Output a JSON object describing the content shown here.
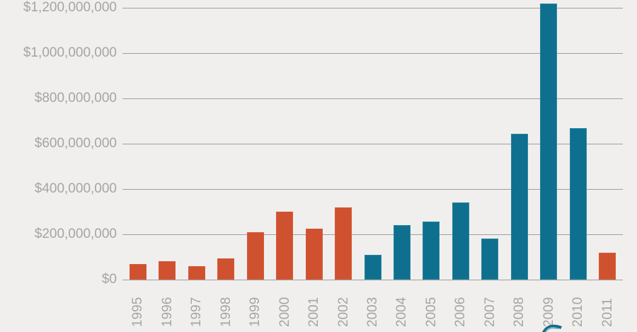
{
  "chart_data": {
    "type": "bar",
    "title": "",
    "xlabel": "",
    "ylabel": "",
    "categories": [
      "1995",
      "1996",
      "1997",
      "1998",
      "1999",
      "2000",
      "2001",
      "2002",
      "2003",
      "2004",
      "2005",
      "2006",
      "2007",
      "2008",
      "2009",
      "2010",
      "2011"
    ],
    "values": [
      70000000,
      80000000,
      58000000,
      95000000,
      210000000,
      300000000,
      225000000,
      320000000,
      110000000,
      240000000,
      255000000,
      340000000,
      180000000,
      645000000,
      1220000000,
      670000000,
      120000000
    ],
    "bar_colors": [
      "orange",
      "orange",
      "orange",
      "orange",
      "orange",
      "orange",
      "orange",
      "orange",
      "teal",
      "teal",
      "teal",
      "teal",
      "teal",
      "teal",
      "teal",
      "teal",
      "orange"
    ],
    "palette": {
      "orange": "#d0512f",
      "orange_edge": "#e0795a",
      "teal": "#0e708e",
      "teal_edge": "#7fc3d8"
    },
    "ylim": [
      0,
      1200000000
    ],
    "ytick_values": [
      1200000000,
      1000000000,
      800000000,
      600000000,
      400000000,
      200000000,
      0
    ],
    "ytick_labels": [
      "$1,200,000,000",
      "$1,000,000,000",
      "$800,000,000",
      "$600,000,000",
      "$400,000,000",
      "$200,000,000",
      "$0"
    ],
    "grid": true,
    "legend": false
  },
  "style": {
    "background": "#f0efed",
    "grid_color": "#9f9f9d",
    "label_color": "#a5a5a3",
    "logo_color": "#156a8a",
    "logo_accent": "#4fa8c8"
  },
  "logo": {
    "name": "partial swoosh logo (cut off at bottom edge)"
  }
}
